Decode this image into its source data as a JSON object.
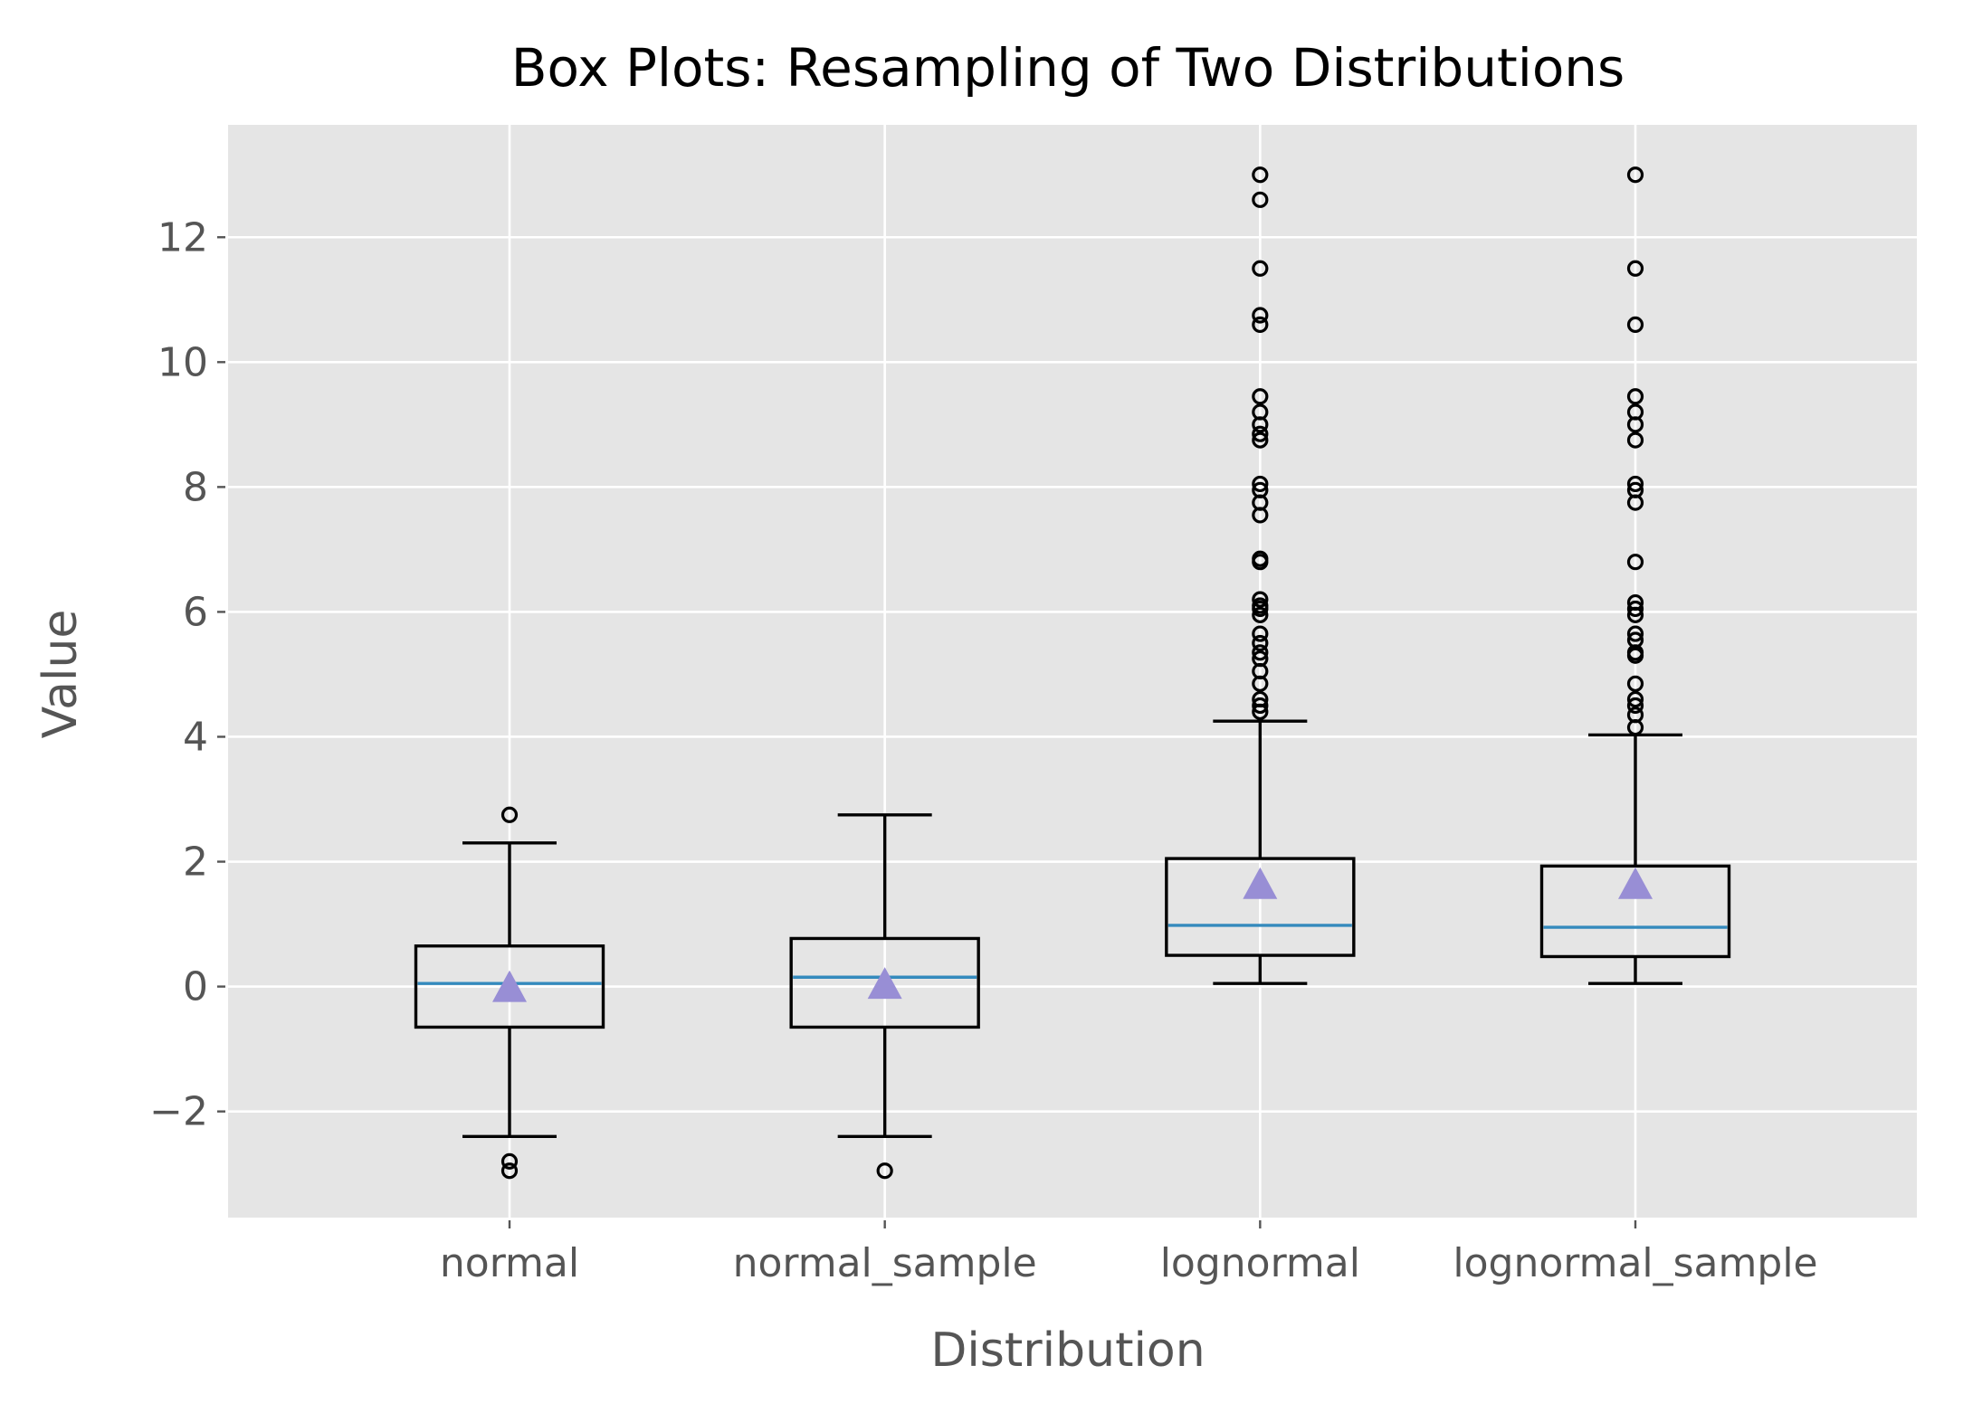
{
  "chart_data": {
    "type": "box",
    "title": "Box Plots: Resampling of Two Distributions",
    "xlabel": "Distribution",
    "ylabel": "Value",
    "ylim": [
      -3.7,
      13.8
    ],
    "yticks": [
      -2,
      0,
      2,
      4,
      6,
      8,
      10,
      12
    ],
    "ytick_labels": [
      "−2",
      "0",
      "2",
      "4",
      "6",
      "8",
      "10",
      "12"
    ],
    "grid": true,
    "colors": {
      "background": "#e5e5e5",
      "grid": "#ffffff",
      "box": "#000000",
      "median": "#348abd",
      "mean_marker": "#988ed5"
    },
    "categories": [
      "normal",
      "normal_sample",
      "lognormal",
      "lognormal_sample"
    ],
    "series": [
      {
        "category": "normal",
        "whisker_low": -2.4,
        "q1": -0.65,
        "median": 0.05,
        "q3": 0.65,
        "whisker_high": 2.3,
        "mean": 0.0,
        "outliers": [
          2.75,
          -2.8,
          -2.95
        ]
      },
      {
        "category": "normal_sample",
        "whisker_low": -2.4,
        "q1": -0.65,
        "median": 0.15,
        "q3": 0.77,
        "whisker_high": 2.75,
        "mean": 0.05,
        "outliers": [
          -2.95
        ]
      },
      {
        "category": "lognormal",
        "whisker_low": 0.05,
        "q1": 0.5,
        "median": 0.98,
        "q3": 2.05,
        "whisker_high": 4.25,
        "mean": 1.65,
        "outliers": [
          4.4,
          4.5,
          4.6,
          4.85,
          5.05,
          5.25,
          5.35,
          5.5,
          5.65,
          5.95,
          6.05,
          6.1,
          6.2,
          6.8,
          6.85,
          7.55,
          7.75,
          7.95,
          8.05,
          8.75,
          8.85,
          9.0,
          9.2,
          9.45,
          10.6,
          10.75,
          11.5,
          12.6,
          13.0
        ]
      },
      {
        "category": "lognormal_sample",
        "whisker_low": 0.05,
        "q1": 0.48,
        "median": 0.95,
        "q3": 1.93,
        "whisker_high": 4.03,
        "mean": 1.65,
        "outliers": [
          4.15,
          4.35,
          4.5,
          4.6,
          4.85,
          5.3,
          5.35,
          5.55,
          5.65,
          5.95,
          6.05,
          6.15,
          6.8,
          7.75,
          7.95,
          8.05,
          8.75,
          9.0,
          9.2,
          9.45,
          10.6,
          11.5,
          13.0
        ]
      }
    ]
  }
}
